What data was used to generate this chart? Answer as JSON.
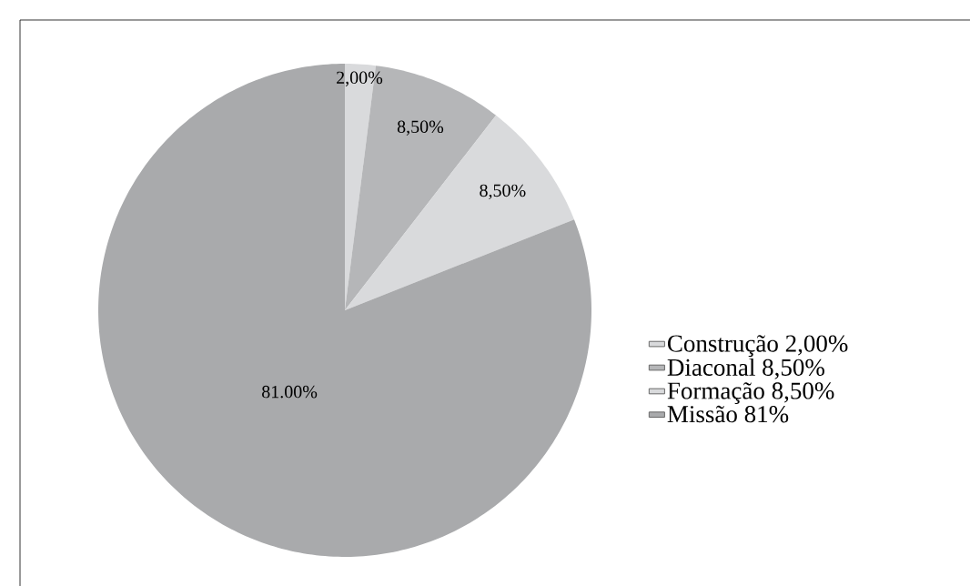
{
  "chart_data": {
    "type": "pie",
    "categories": [
      "Construção 2,00%",
      "Diaconal 8,50%",
      "Formação 8,50%",
      "Missão 81%"
    ],
    "values": [
      2,
      8.5,
      8.5,
      81
    ],
    "colors": [
      "#d9dadc",
      "#b5b6b8",
      "#d9dadc",
      "#a9aaac"
    ],
    "value_labels": [
      "2,00%",
      "8,50%",
      "8,50%",
      "81.00%"
    ],
    "legend": "right"
  }
}
